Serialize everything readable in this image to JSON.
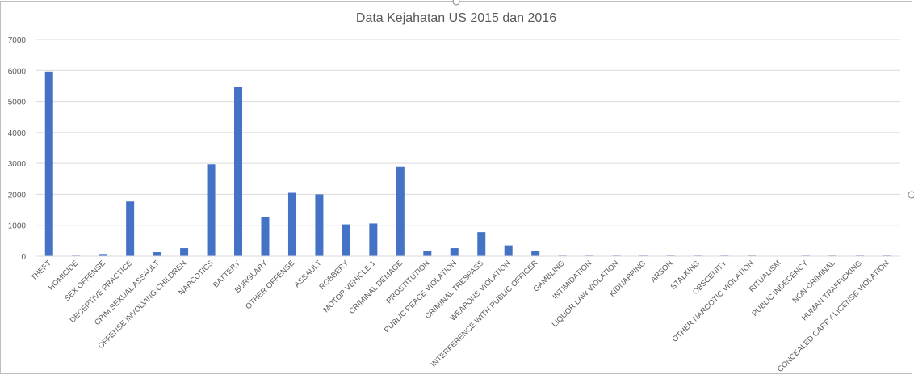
{
  "chart_data": {
    "type": "bar",
    "title": "Data Kejahatan US 2015 dan 2016",
    "xlabel": "",
    "ylabel": "",
    "ylim": [
      0,
      7000
    ],
    "yticks": [
      0,
      1000,
      2000,
      3000,
      4000,
      5000,
      6000,
      7000
    ],
    "grid": true,
    "legend": "none",
    "bar_color": "#4472c4",
    "categories": [
      "THEFT",
      "HOMICIDE",
      "SEX OFFENSE",
      "DECEPTIVE PRACTICE",
      "CRIM SEXUAL ASSAULT",
      "OFFENSE INVOLVING CHILDREN",
      "NARCOTICS",
      "BATTERY",
      "BURGLARY",
      "OTHER OFFENSE",
      "ASSAULT",
      "ROBBERY",
      "MOTOR VEHICLE 1",
      "CRIMINAL DEMAGE",
      "PROSTITUTION",
      "PUBLIC PEACE VIOLATION",
      "CRIMINAL TRESPASS",
      "WEAPONS VIOLATION",
      "INTERFERENCE WITH PUBLIC OFFICER",
      "GAMBLING",
      "INTIMIDATION",
      "LIQUOR LAW VIOLATION",
      "KIDNAPPING",
      "ARSON",
      "STALKING",
      "OBSCENITY",
      "OTHER NARCOTIC VIOLATION",
      "RITUALISM",
      "PUBLIC INDECENCY",
      "NON-CRIMINAL",
      "HUMAN TRAFFICKING",
      "CONCEALED CARRY LICENSE VIOLATION"
    ],
    "values": [
      5960,
      20,
      70,
      1770,
      130,
      260,
      2970,
      5460,
      1270,
      2050,
      2000,
      1030,
      1060,
      2880,
      160,
      260,
      780,
      350,
      160,
      20,
      20,
      20,
      20,
      20,
      20,
      20,
      20,
      0,
      20,
      20,
      20,
      20
    ]
  }
}
